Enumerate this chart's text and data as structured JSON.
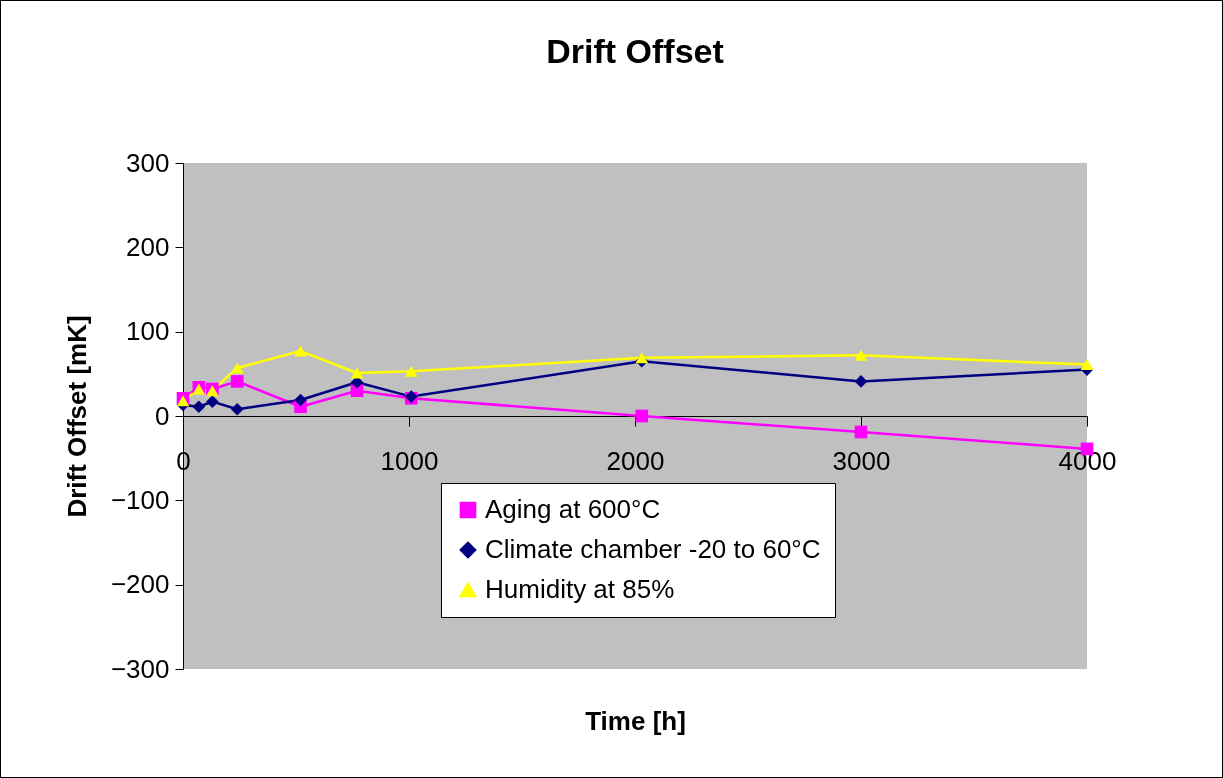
{
  "chart_data": {
    "type": "line",
    "title": "Drift Offset",
    "xlabel": "Time [h]",
    "ylabel": "Drift Offset [mK]",
    "x": [
      0,
      70,
      130,
      240,
      520,
      770,
      1010,
      2030,
      3000,
      4000
    ],
    "series": [
      {
        "name": "Aging at 600°C",
        "color": "#ff00ff",
        "marker": "square",
        "values": [
          21,
          34,
          32,
          41,
          11,
          30,
          21,
          0,
          -19,
          -39
        ]
      },
      {
        "name": "Climate chamber -20 to 60°C",
        "color": "#000080",
        "marker": "diamond",
        "values": [
          13,
          11,
          17,
          8,
          19,
          40,
          23,
          65,
          41,
          55
        ]
      },
      {
        "name": "Humidity at 85%",
        "color": "#ffff00",
        "marker": "triangle",
        "values": [
          18,
          32,
          30,
          57,
          77,
          51,
          53,
          69,
          72,
          61
        ]
      }
    ],
    "xlim": [
      0,
      4000
    ],
    "xticks": [
      0,
      1000,
      2000,
      3000,
      4000
    ],
    "ylim": [
      -300,
      300
    ],
    "yticks": [
      -300,
      -200,
      -100,
      0,
      100,
      200,
      300
    ],
    "grid": false,
    "legend": "bottom"
  }
}
